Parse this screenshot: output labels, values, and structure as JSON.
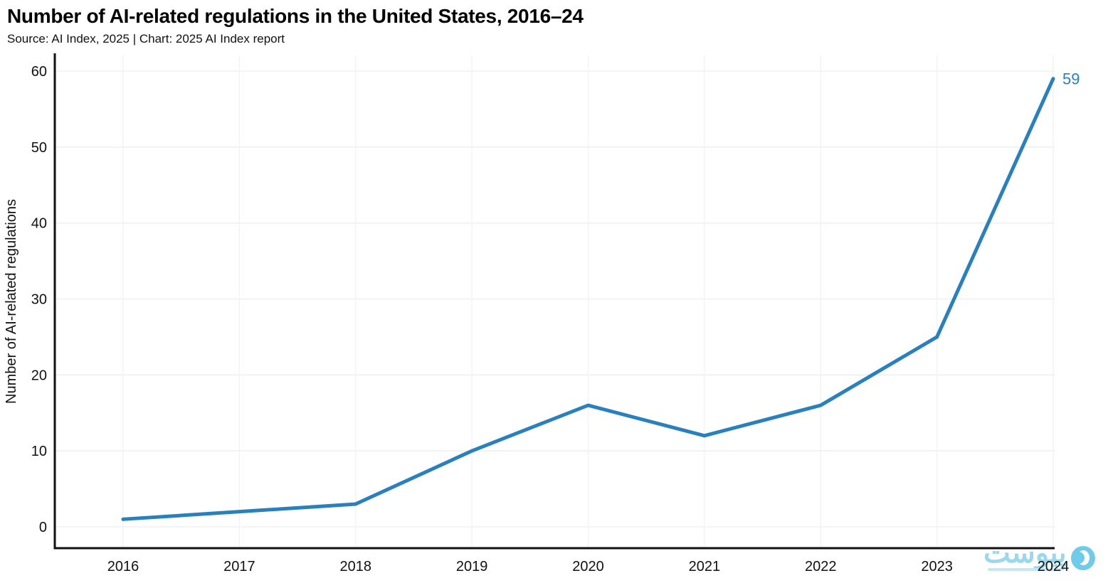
{
  "header": {
    "title": "Number of AI-related regulations in the United States, 2016–24",
    "subtitle": "Source: AI Index, 2025 | Chart: 2025 AI Index report"
  },
  "chart_data": {
    "type": "line",
    "title": "Number of AI-related regulations in the United States, 2016–24",
    "categories": [
      "2016",
      "2017",
      "2018",
      "2019",
      "2020",
      "2021",
      "2022",
      "2023",
      "2024"
    ],
    "series": [
      {
        "name": "Number of AI-related regulations",
        "values": [
          1,
          2,
          3,
          10,
          16,
          12,
          16,
          25,
          59
        ]
      }
    ],
    "xlabel": "",
    "ylabel": "Number of AI-related regulations",
    "yticks": [
      0,
      10,
      20,
      30,
      40,
      50,
      60
    ],
    "ylim": [
      0,
      60
    ],
    "grid": true,
    "legend": false,
    "line_color": "#2880bf",
    "annotation": {
      "label": "59",
      "category": "2024",
      "value": 59
    }
  },
  "watermark": {
    "text": "پیوست"
  }
}
